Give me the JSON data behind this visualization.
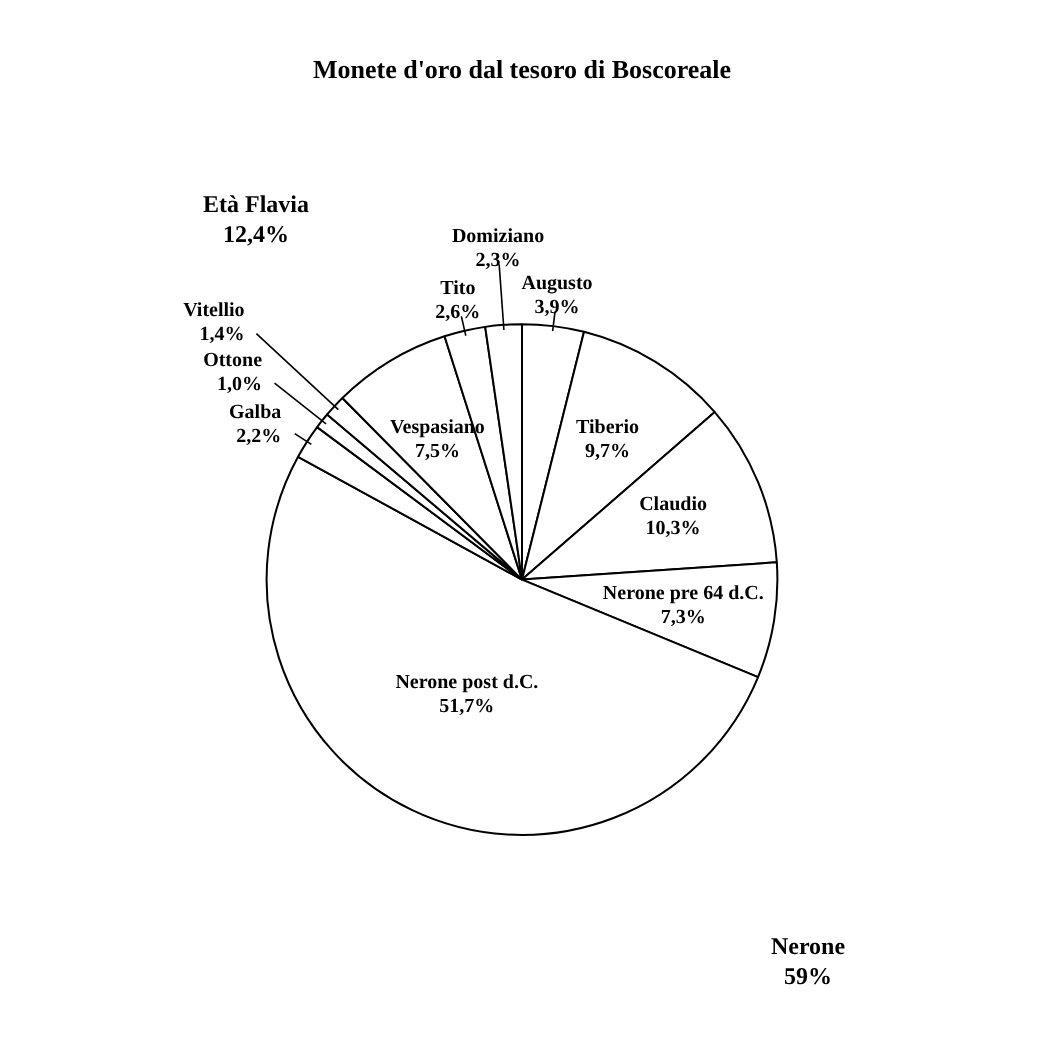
{
  "chart_data": {
    "type": "pie",
    "title": "Monete d'oro dal tesoro di Boscoreale",
    "categories": [
      "Augusto",
      "Tiberio",
      "Claudio",
      "Nerone pre 64 d.C.",
      "Nerone post d.C.",
      "Galba",
      "Ottone",
      "Vitellio",
      "Vespasiano",
      "Tito",
      "Domiziano"
    ],
    "values": [
      3.9,
      9.7,
      10.3,
      7.3,
      51.7,
      2.2,
      1.0,
      1.4,
      7.5,
      2.6,
      2.3
    ],
    "value_labels": [
      "3,9%",
      "9,7%",
      "10,3%",
      "7,3%",
      "51,7%",
      "2,2%",
      "1,0%",
      "1,4%",
      "7,5%",
      "2,6%",
      "2,3%"
    ],
    "colors": [
      "#ffffff",
      "#ffffff",
      "#ffffff",
      "#ffffff",
      "#ffffff",
      "#ffffff",
      "#ffffff",
      "#ffffff",
      "#ffffff",
      "#ffffff",
      "#ffffff"
    ],
    "annotations": [
      "Età Flavia 12,4%",
      "Nerone 59%"
    ],
    "legend": false
  }
}
